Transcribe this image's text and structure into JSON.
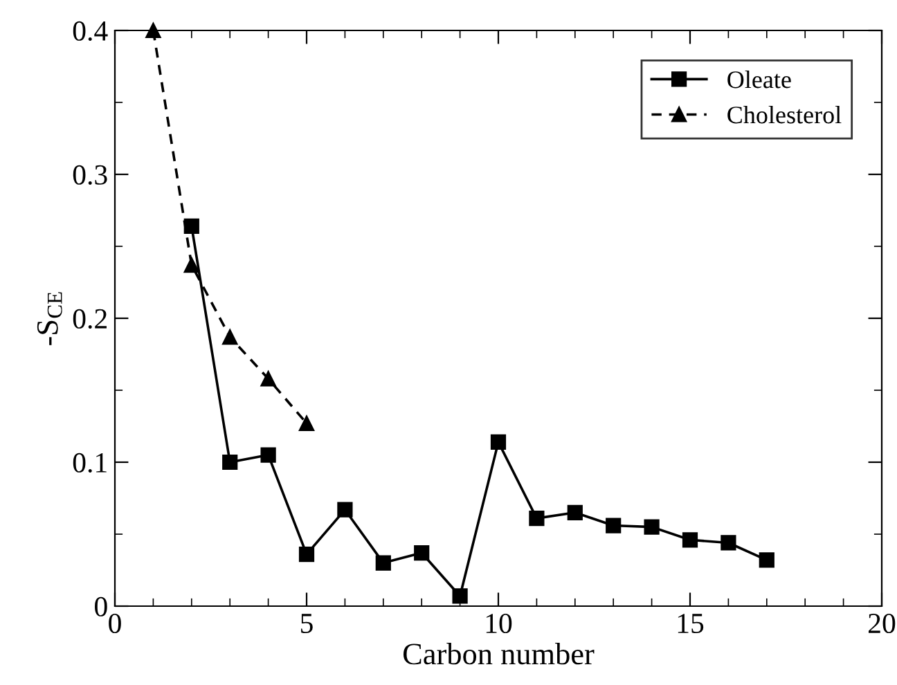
{
  "chart_data": {
    "type": "line",
    "xlabel": "Carbon number",
    "ylabel": "-S$_{CE}$",
    "xlim": [
      0,
      20
    ],
    "xticks": [
      0,
      5,
      10,
      15,
      20
    ],
    "ylim": [
      0,
      0.4
    ],
    "yticks": [
      0,
      0.1,
      0.2,
      0.3,
      0.4
    ],
    "grid": false,
    "legend": "top right",
    "series": [
      {
        "name": "Oleate",
        "color": "#000000",
        "marker": "square",
        "line_style": "solid",
        "x": [
          2,
          3,
          4,
          5,
          6,
          7,
          8,
          9,
          10,
          11,
          12,
          13,
          14,
          15,
          16,
          17
        ],
        "values": [
          0.264,
          0.1,
          0.105,
          0.036,
          0.067,
          0.03,
          0.037,
          0.007,
          0.114,
          0.061,
          0.065,
          0.056,
          0.055,
          0.046,
          0.044,
          0.032
        ]
      },
      {
        "name": "Cholesterol",
        "color": "#000000",
        "marker": "triangle",
        "line_style": "dashed",
        "x": [
          1,
          2,
          3,
          4,
          5
        ],
        "values": [
          0.4,
          0.237,
          0.187,
          0.158,
          0.127
        ]
      }
    ]
  }
}
